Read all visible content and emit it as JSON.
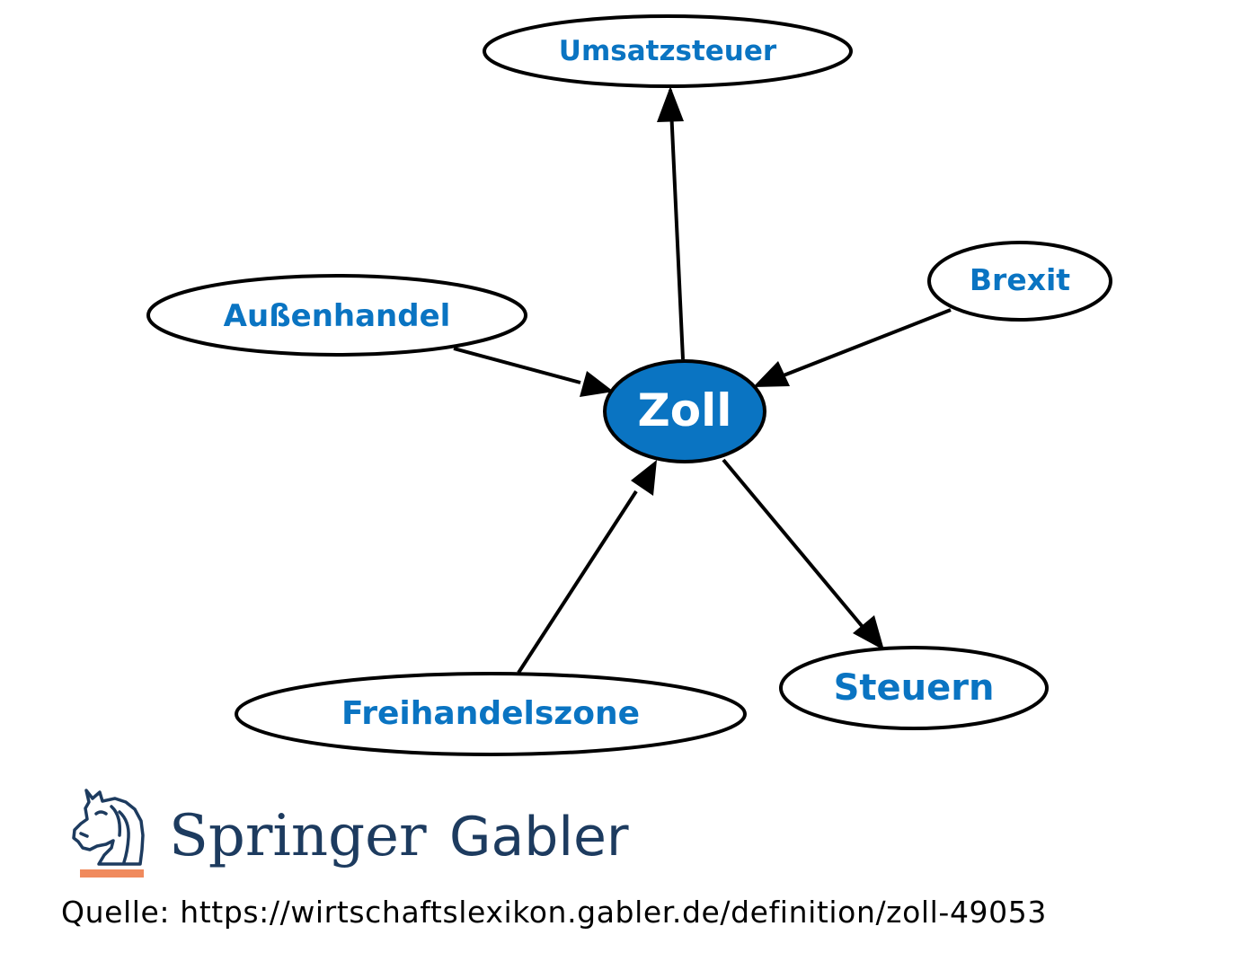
{
  "diagram": {
    "center": {
      "label": "Zoll"
    },
    "nodes": [
      {
        "id": "umsatzsteuer",
        "label": "Umsatzsteuer",
        "direction": "from-center"
      },
      {
        "id": "aussenhandel",
        "label": "Außenhandel",
        "direction": "to-center"
      },
      {
        "id": "brexit",
        "label": "Brexit",
        "direction": "to-center"
      },
      {
        "id": "freihandelszone",
        "label": "Freihandelszone",
        "direction": "to-center"
      },
      {
        "id": "steuern",
        "label": "Steuern",
        "direction": "from-center"
      }
    ]
  },
  "logo": {
    "brand": "Springer",
    "sub": "Gabler"
  },
  "source": {
    "text": "Quelle: https://wirtschaftslexikon.gabler.de/definition/zoll-49053"
  },
  "colors": {
    "center_fill": "#0a74c2",
    "label_blue": "#0a74c2",
    "center_text": "#ffffff",
    "stroke": "#000000",
    "logo_navy": "#1d3b5f",
    "logo_accent": "#f08a5d",
    "source_text": "#000000"
  }
}
